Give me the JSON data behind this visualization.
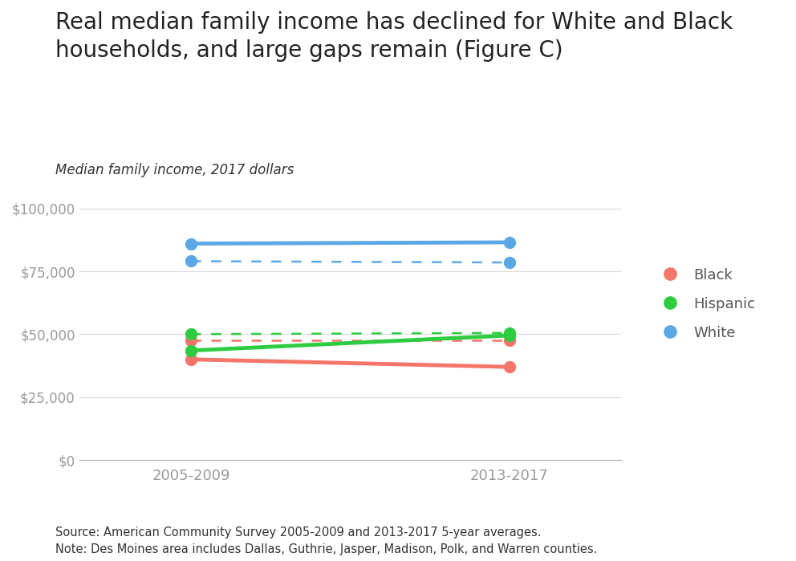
{
  "title": "Real median family income has declined for White and Black\nhouseholds, and large gaps remain (Figure C)",
  "subtitle": "Median family income, 2017 dollars",
  "source_text": "Source: American Community Survey 2005-2009 and 2013-2017 5-year averages.\nNote: Des Moines area includes Dallas, Guthrie, Jasper, Madison, Polk, and Warren counties.",
  "x_labels": [
    "2005-2009",
    "2013-2017"
  ],
  "x_positions": [
    0,
    1
  ],
  "ylim": [
    0,
    107000
  ],
  "yticks": [
    0,
    25000,
    50000,
    75000,
    100000
  ],
  "series": [
    {
      "label": "Black",
      "color": "#F4756A",
      "solid_values": [
        40000,
        37000
      ],
      "dashed_values": [
        47500,
        47500
      ]
    },
    {
      "label": "Hispanic",
      "color": "#2ECC40",
      "solid_values": [
        43500,
        49500
      ],
      "dashed_values": [
        50000,
        50500
      ]
    },
    {
      "label": "White",
      "color": "#5BA8E5",
      "solid_values": [
        86000,
        86500
      ],
      "dashed_values": [
        79000,
        78500
      ]
    }
  ],
  "background_color": "#FFFFFF",
  "grid_color": "#D8D8D8",
  "title_fontsize": 20,
  "subtitle_fontsize": 12,
  "tick_label_color": "#999999",
  "axis_label_color": "#555555",
  "legend_label_color": "#555555",
  "source_fontsize": 10.5
}
